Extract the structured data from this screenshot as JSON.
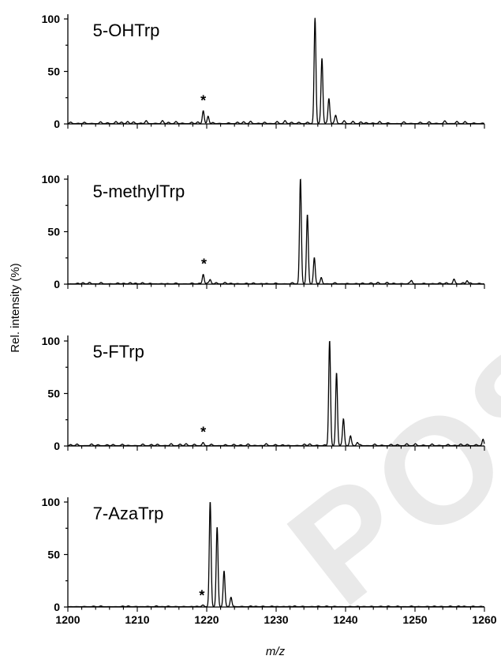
{
  "watermark": "POS",
  "chart_data": {
    "type": "line",
    "xlabel": "m/z",
    "ylabel": "Rel. intensity (%)",
    "xlim": [
      1200,
      1260
    ],
    "x_ticks": [
      "1200",
      "1210",
      "1220",
      "1230",
      "1240",
      "1250",
      "1260"
    ],
    "panels": [
      {
        "label": "5-OHTrp",
        "ylim": [
          0,
          100
        ],
        "y_ticks": [
          "0",
          "50",
          "100"
        ],
        "marker": {
          "text": "*",
          "x": 1219.5,
          "y": 22
        },
        "peaks": [
          [
            1219.5,
            12
          ],
          [
            1220.2,
            7
          ],
          [
            1235.6,
            100
          ],
          [
            1236.6,
            61
          ],
          [
            1237.6,
            24
          ],
          [
            1238.6,
            6
          ]
        ],
        "noise": 3
      },
      {
        "label": "5-methylTrp",
        "ylim": [
          0,
          100
        ],
        "y_ticks": [
          "0",
          "50",
          "100"
        ],
        "marker": {
          "text": "*",
          "x": 1219.6,
          "y": 19
        },
        "peaks": [
          [
            1219.5,
            9
          ],
          [
            1220.5,
            4
          ],
          [
            1233.5,
            100
          ],
          [
            1234.5,
            66
          ],
          [
            1235.5,
            25
          ],
          [
            1236.5,
            6
          ],
          [
            1249.5,
            3
          ],
          [
            1255.6,
            4
          ],
          [
            1257.5,
            3
          ]
        ],
        "noise": 1.5
      },
      {
        "label": "5-FTrp",
        "ylim": [
          0,
          100
        ],
        "y_ticks": [
          "0",
          "50",
          "100"
        ],
        "marker": {
          "text": "*",
          "x": 1219.5,
          "y": 13
        },
        "peaks": [
          [
            1219.5,
            2
          ],
          [
            1237.7,
            100
          ],
          [
            1238.7,
            69
          ],
          [
            1239.7,
            25
          ],
          [
            1240.7,
            8
          ],
          [
            1241.7,
            3
          ],
          [
            1259.8,
            6
          ]
        ],
        "noise": 2
      },
      {
        "label": "7-AzaTrp",
        "ylim": [
          0,
          100
        ],
        "y_ticks": [
          "0",
          "50",
          "100"
        ],
        "marker": {
          "text": "*",
          "x": 1219.3,
          "y": 11
        },
        "peaks": [
          [
            1219.5,
            1
          ],
          [
            1220.5,
            100
          ],
          [
            1221.5,
            76
          ],
          [
            1222.5,
            34
          ],
          [
            1223.5,
            9
          ]
        ],
        "noise": 0.8
      }
    ]
  }
}
